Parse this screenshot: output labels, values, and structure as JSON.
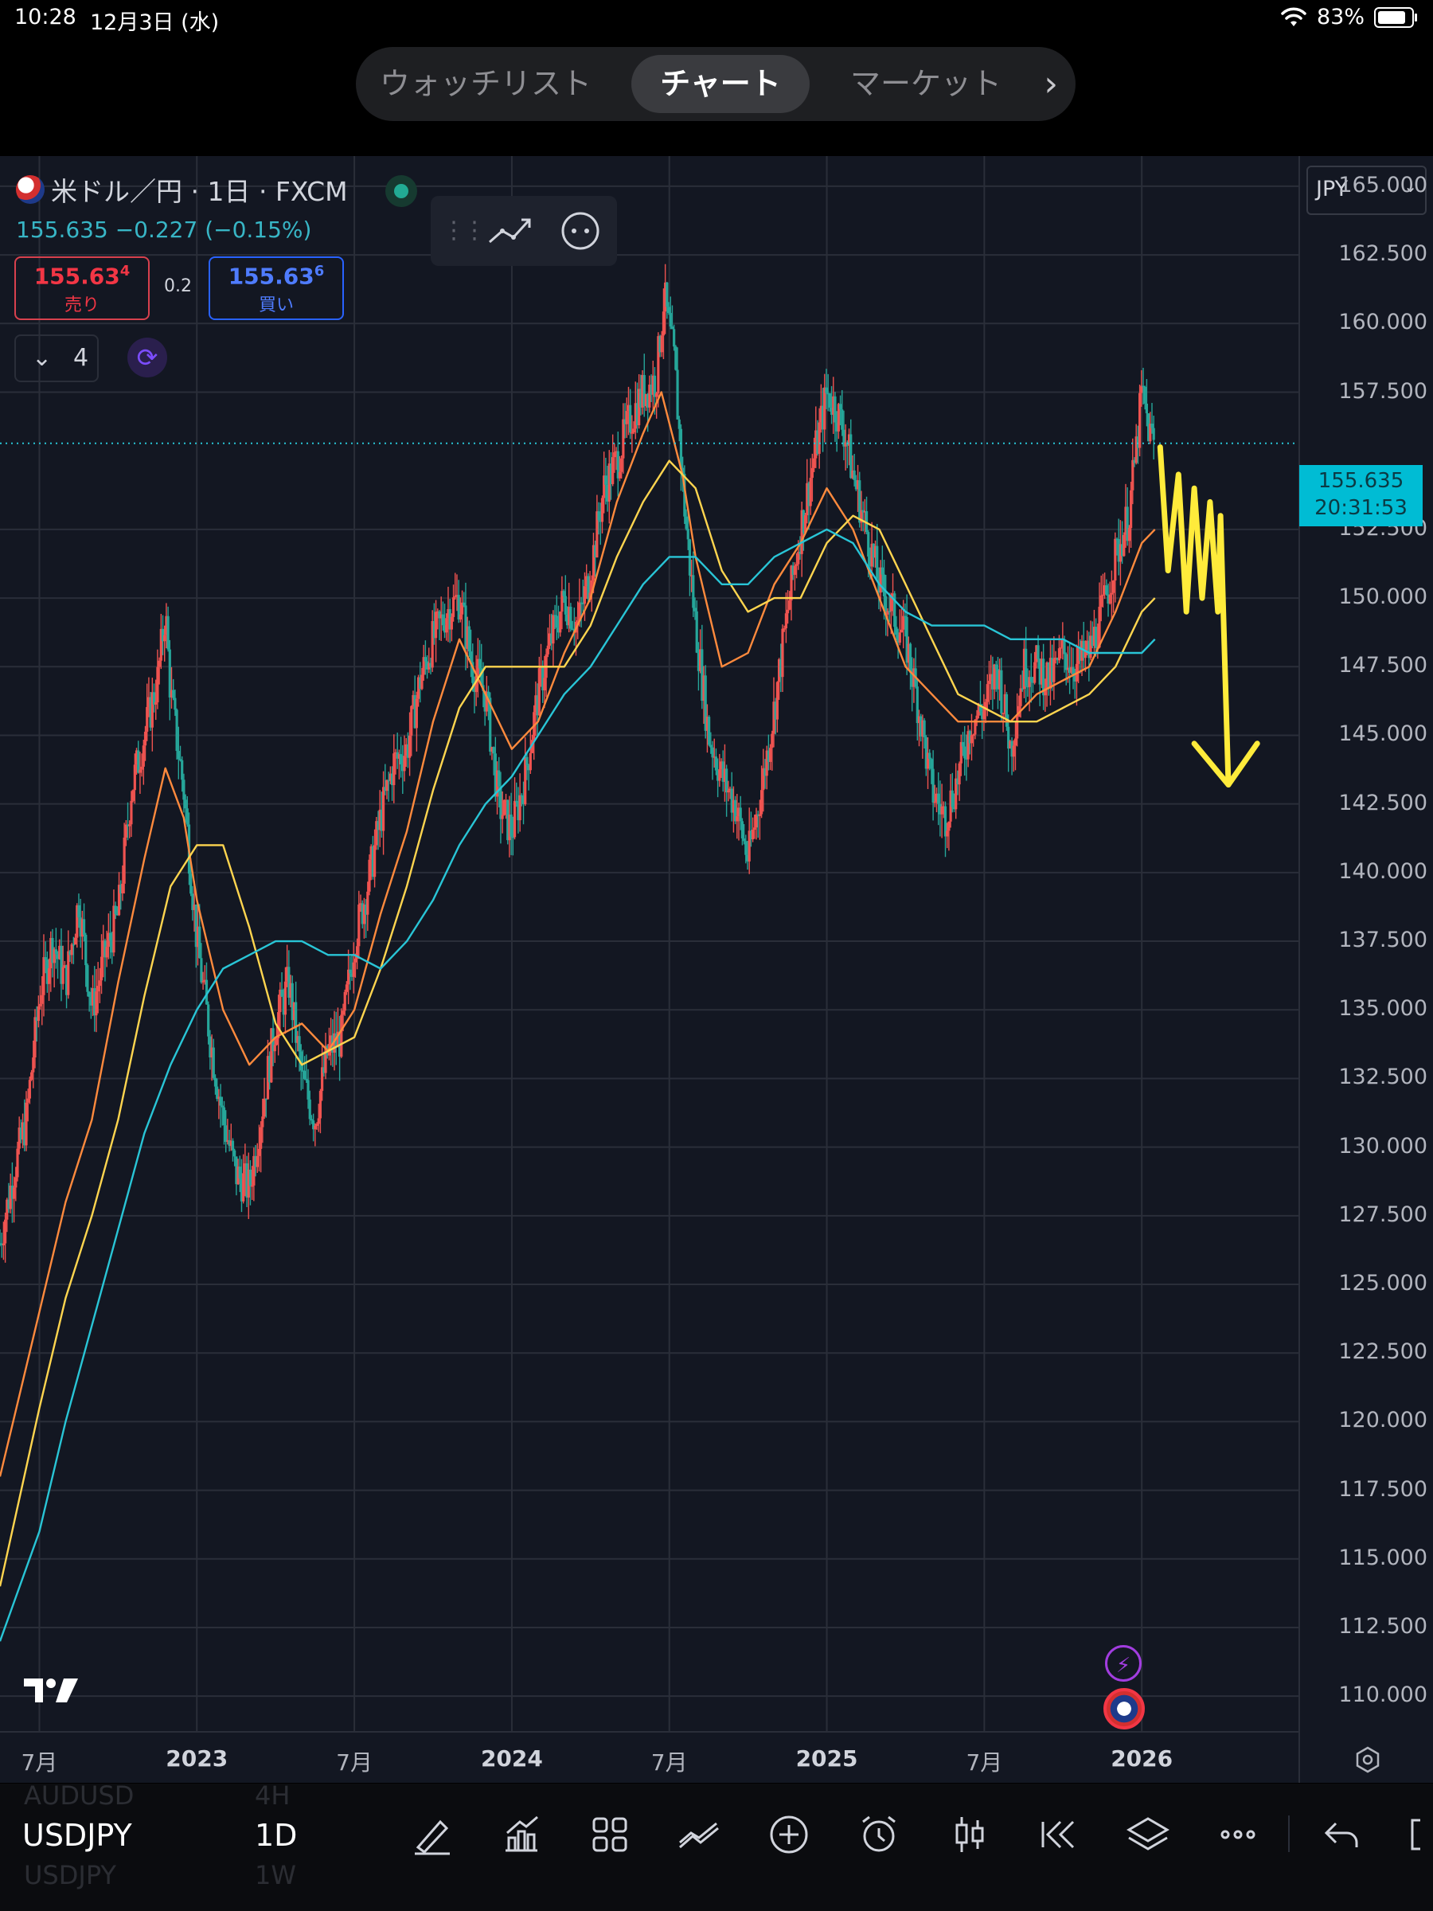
{
  "status_bar": {
    "time": "10:28",
    "date": "12月3日 (水)",
    "battery": "83%"
  },
  "nav_tabs": [
    {
      "label": "ウォッチリスト",
      "active": false
    },
    {
      "label": "チャート",
      "active": true
    },
    {
      "label": "マーケット",
      "active": false
    }
  ],
  "legend": {
    "title": "米ドル／円 · 1日 · FXCM",
    "price_line": "155.635  −0.227 (−0.15%)",
    "sell_value": "155.63",
    "sell_sup": "4",
    "sell_label": "売り",
    "spread": "0.2",
    "buy_value": "155.63",
    "buy_sup": "6",
    "buy_label": "買い",
    "indicators_count": "4"
  },
  "currency_select": "JPY",
  "current_price": {
    "price": "155.635",
    "countdown": "20:31:53"
  },
  "colors": {
    "up": "#ef5350",
    "down": "#26a69a",
    "ma_orange": "#ff8a3d",
    "ma_yellow": "#ffd54f",
    "ma_cyan": "#29c5d6",
    "annotation": "#ffeb3b"
  },
  "bottom": {
    "symbol": "USDJPY",
    "timeframe": "1D",
    "ghost_prev_symbol": "AUDUSD",
    "ghost_prev_tf": "4H",
    "ghost_next_symbol": "USDJPY",
    "ghost_next_tf": "1W"
  },
  "toolbar_icons": [
    "draw-icon",
    "indicators-icon",
    "templates-icon",
    "compare-icon",
    "add-icon",
    "alert-icon",
    "bar-style-icon",
    "replay-icon",
    "layers-icon",
    "more-icon",
    "undo-icon",
    "fullscreen-icon"
  ],
  "chart_data": {
    "type": "candlestick",
    "symbol": "USDJPY",
    "interval": "1D",
    "y_axis": {
      "ticks": [
        "165.000",
        "162.500",
        "160.000",
        "157.500",
        "152.500",
        "150.000",
        "147.500",
        "145.000",
        "142.500",
        "140.000",
        "137.500",
        "135.000",
        "132.500",
        "130.000",
        "127.500",
        "125.000",
        "122.500",
        "120.000",
        "117.500",
        "115.000",
        "112.500",
        "110.000"
      ],
      "range": [
        108.7,
        166.1
      ]
    },
    "x_axis": {
      "ticks": [
        {
          "label": "7月",
          "t": 0.0
        },
        {
          "label": "2023",
          "t": 6.0
        },
        {
          "label": "7月",
          "t": 12.0
        },
        {
          "label": "2024",
          "t": 18.0
        },
        {
          "label": "7月",
          "t": 24.0
        },
        {
          "label": "2025",
          "t": 30.0
        },
        {
          "label": "7月",
          "t": 36.0
        },
        {
          "label": "2026",
          "t": 42.0
        }
      ],
      "range": [
        -1.5,
        48.0
      ]
    },
    "price_series": [
      [
        -1.5,
        126.5
      ],
      [
        -1.0,
        129.0
      ],
      [
        -0.5,
        131.0
      ],
      [
        0.0,
        135.5
      ],
      [
        0.5,
        137.5
      ],
      [
        1.0,
        136.0
      ],
      [
        1.5,
        139.0
      ],
      [
        2.0,
        135.0
      ],
      [
        2.5,
        137.0
      ],
      [
        3.0,
        138.5
      ],
      [
        3.5,
        143.0
      ],
      [
        4.0,
        145.0
      ],
      [
        4.5,
        147.0
      ],
      [
        4.8,
        149.5
      ],
      [
        5.0,
        146.5
      ],
      [
        5.5,
        143.0
      ],
      [
        6.0,
        137.5
      ],
      [
        6.5,
        134.0
      ],
      [
        7.0,
        131.0
      ],
      [
        7.5,
        129.0
      ],
      [
        8.0,
        128.5
      ],
      [
        8.5,
        131.5
      ],
      [
        9.0,
        134.5
      ],
      [
        9.5,
        136.0
      ],
      [
        10.0,
        132.5
      ],
      [
        10.5,
        131.0
      ],
      [
        11.0,
        133.5
      ],
      [
        11.5,
        134.0
      ],
      [
        12.0,
        137.5
      ],
      [
        12.5,
        139.5
      ],
      [
        13.0,
        142.0
      ],
      [
        13.5,
        144.0
      ],
      [
        14.0,
        144.5
      ],
      [
        14.5,
        147.0
      ],
      [
        15.0,
        148.5
      ],
      [
        15.5,
        149.5
      ],
      [
        16.0,
        150.0
      ],
      [
        16.5,
        147.5
      ],
      [
        17.0,
        146.5
      ],
      [
        17.5,
        142.5
      ],
      [
        18.0,
        141.5
      ],
      [
        18.5,
        143.5
      ],
      [
        19.0,
        146.5
      ],
      [
        19.5,
        148.5
      ],
      [
        20.0,
        150.0
      ],
      [
        20.5,
        149.0
      ],
      [
        21.0,
        151.0
      ],
      [
        21.5,
        154.0
      ],
      [
        22.0,
        155.0
      ],
      [
        22.5,
        156.5
      ],
      [
        23.0,
        157.5
      ],
      [
        23.5,
        158.0
      ],
      [
        23.8,
        161.0
      ],
      [
        24.2,
        158.5
      ],
      [
        24.6,
        153.0
      ],
      [
        25.0,
        149.0
      ],
      [
        25.5,
        145.0
      ],
      [
        26.0,
        143.5
      ],
      [
        26.5,
        142.5
      ],
      [
        27.0,
        140.5
      ],
      [
        27.5,
        143.0
      ],
      [
        28.0,
        146.0
      ],
      [
        28.5,
        149.5
      ],
      [
        29.0,
        152.5
      ],
      [
        29.5,
        155.0
      ],
      [
        30.0,
        157.5
      ],
      [
        30.3,
        157.0
      ],
      [
        30.7,
        156.0
      ],
      [
        31.0,
        154.5
      ],
      [
        31.5,
        152.5
      ],
      [
        32.0,
        150.5
      ],
      [
        32.5,
        149.5
      ],
      [
        33.0,
        148.5
      ],
      [
        33.5,
        146.0
      ],
      [
        34.0,
        143.0
      ],
      [
        34.5,
        142.0
      ],
      [
        35.0,
        143.5
      ],
      [
        35.5,
        145.5
      ],
      [
        36.0,
        146.0
      ],
      [
        36.5,
        147.5
      ],
      [
        37.0,
        144.5
      ],
      [
        37.5,
        147.5
      ],
      [
        38.0,
        147.5
      ],
      [
        38.5,
        147.0
      ],
      [
        39.0,
        148.0
      ],
      [
        39.5,
        147.5
      ],
      [
        40.0,
        148.0
      ],
      [
        40.5,
        149.5
      ],
      [
        41.0,
        151.5
      ],
      [
        41.5,
        153.0
      ],
      [
        41.8,
        155.5
      ],
      [
        42.0,
        157.5
      ],
      [
        42.3,
        156.0
      ],
      [
        42.5,
        155.6
      ]
    ],
    "moving_averages": [
      {
        "name": "ma-orange",
        "color": "#ff8a3d",
        "values": [
          [
            -1.5,
            118.0
          ],
          [
            0.0,
            124.0
          ],
          [
            1.0,
            128.0
          ],
          [
            2.0,
            131.0
          ],
          [
            3.0,
            136.0
          ],
          [
            4.0,
            140.5
          ],
          [
            4.8,
            143.8
          ],
          [
            5.5,
            142.0
          ],
          [
            6.0,
            139.0
          ],
          [
            7.0,
            135.0
          ],
          [
            8.0,
            133.0
          ],
          [
            9.0,
            134.0
          ],
          [
            10.0,
            134.5
          ],
          [
            11.0,
            133.5
          ],
          [
            12.0,
            135.0
          ],
          [
            13.0,
            138.5
          ],
          [
            14.0,
            141.5
          ],
          [
            15.0,
            145.5
          ],
          [
            16.0,
            148.5
          ],
          [
            17.0,
            146.5
          ],
          [
            18.0,
            144.5
          ],
          [
            19.0,
            145.5
          ],
          [
            20.0,
            148.0
          ],
          [
            21.0,
            150.0
          ],
          [
            22.0,
            153.5
          ],
          [
            23.0,
            156.0
          ],
          [
            23.7,
            157.5
          ],
          [
            24.5,
            154.5
          ],
          [
            25.0,
            151.5
          ],
          [
            26.0,
            147.5
          ],
          [
            27.0,
            148.0
          ],
          [
            28.0,
            150.5
          ],
          [
            29.0,
            152.0
          ],
          [
            30.0,
            154.0
          ],
          [
            31.0,
            152.5
          ],
          [
            32.0,
            150.0
          ],
          [
            33.0,
            147.5
          ],
          [
            34.0,
            146.5
          ],
          [
            35.0,
            145.5
          ],
          [
            36.0,
            145.5
          ],
          [
            37.0,
            145.5
          ],
          [
            38.0,
            146.5
          ],
          [
            39.0,
            147.0
          ],
          [
            40.0,
            147.5
          ],
          [
            41.0,
            149.5
          ],
          [
            42.0,
            152.0
          ],
          [
            42.5,
            152.5
          ]
        ]
      },
      {
        "name": "ma-yellow",
        "color": "#ffd54f",
        "values": [
          [
            -1.5,
            114.0
          ],
          [
            0.0,
            120.5
          ],
          [
            1.0,
            124.5
          ],
          [
            2.0,
            127.5
          ],
          [
            3.0,
            131.0
          ],
          [
            4.0,
            135.5
          ],
          [
            5.0,
            139.5
          ],
          [
            6.0,
            141.0
          ],
          [
            7.0,
            141.0
          ],
          [
            8.0,
            138.0
          ],
          [
            9.0,
            134.5
          ],
          [
            10.0,
            133.0
          ],
          [
            11.0,
            133.5
          ],
          [
            12.0,
            134.0
          ],
          [
            13.0,
            136.5
          ],
          [
            14.0,
            139.5
          ],
          [
            15.0,
            143.0
          ],
          [
            16.0,
            146.0
          ],
          [
            17.0,
            147.5
          ],
          [
            18.0,
            147.5
          ],
          [
            19.0,
            147.5
          ],
          [
            20.0,
            147.5
          ],
          [
            21.0,
            149.0
          ],
          [
            22.0,
            151.5
          ],
          [
            23.0,
            153.5
          ],
          [
            24.0,
            155.0
          ],
          [
            25.0,
            154.0
          ],
          [
            26.0,
            151.0
          ],
          [
            27.0,
            149.5
          ],
          [
            28.0,
            150.0
          ],
          [
            29.0,
            150.0
          ],
          [
            30.0,
            152.0
          ],
          [
            31.0,
            153.0
          ],
          [
            32.0,
            152.5
          ],
          [
            33.0,
            150.5
          ],
          [
            34.0,
            148.5
          ],
          [
            35.0,
            146.5
          ],
          [
            36.0,
            146.0
          ],
          [
            37.0,
            145.5
          ],
          [
            38.0,
            145.5
          ],
          [
            39.0,
            146.0
          ],
          [
            40.0,
            146.5
          ],
          [
            41.0,
            147.5
          ],
          [
            42.0,
            149.5
          ],
          [
            42.5,
            150.0
          ]
        ]
      },
      {
        "name": "ma-cyan",
        "color": "#29c5d6",
        "values": [
          [
            -1.5,
            112.0
          ],
          [
            0.0,
            116.0
          ],
          [
            1.0,
            120.0
          ],
          [
            2.0,
            123.5
          ],
          [
            3.0,
            127.0
          ],
          [
            4.0,
            130.5
          ],
          [
            5.0,
            133.0
          ],
          [
            6.0,
            135.0
          ],
          [
            7.0,
            136.5
          ],
          [
            8.0,
            137.0
          ],
          [
            9.0,
            137.5
          ],
          [
            10.0,
            137.5
          ],
          [
            11.0,
            137.0
          ],
          [
            12.0,
            137.0
          ],
          [
            13.0,
            136.5
          ],
          [
            14.0,
            137.5
          ],
          [
            15.0,
            139.0
          ],
          [
            16.0,
            141.0
          ],
          [
            17.0,
            142.5
          ],
          [
            18.0,
            143.5
          ],
          [
            19.0,
            145.0
          ],
          [
            20.0,
            146.5
          ],
          [
            21.0,
            147.5
          ],
          [
            22.0,
            149.0
          ],
          [
            23.0,
            150.5
          ],
          [
            24.0,
            151.5
          ],
          [
            25.0,
            151.5
          ],
          [
            26.0,
            150.5
          ],
          [
            27.0,
            150.5
          ],
          [
            28.0,
            151.5
          ],
          [
            29.0,
            152.0
          ],
          [
            30.0,
            152.5
          ],
          [
            31.0,
            152.0
          ],
          [
            32.0,
            150.5
          ],
          [
            33.0,
            149.5
          ],
          [
            34.0,
            149.0
          ],
          [
            35.0,
            149.0
          ],
          [
            36.0,
            149.0
          ],
          [
            37.0,
            148.5
          ],
          [
            38.0,
            148.5
          ],
          [
            39.0,
            148.5
          ],
          [
            40.0,
            148.0
          ],
          [
            41.0,
            148.0
          ],
          [
            42.0,
            148.0
          ],
          [
            42.5,
            148.5
          ]
        ]
      }
    ],
    "annotation_arrow": {
      "color": "#ffeb3b",
      "zigzag": [
        [
          42.7,
          155.5
        ],
        [
          43.0,
          151.0
        ],
        [
          43.4,
          154.5
        ],
        [
          43.7,
          149.5
        ],
        [
          44.0,
          154.0
        ],
        [
          44.3,
          150.0
        ],
        [
          44.6,
          153.5
        ],
        [
          44.9,
          149.5
        ],
        [
          45.0,
          153.0
        ],
        [
          45.3,
          143.2
        ]
      ],
      "head_left": [
        44.0,
        144.7
      ],
      "head_right": [
        46.4,
        144.7
      ]
    }
  }
}
